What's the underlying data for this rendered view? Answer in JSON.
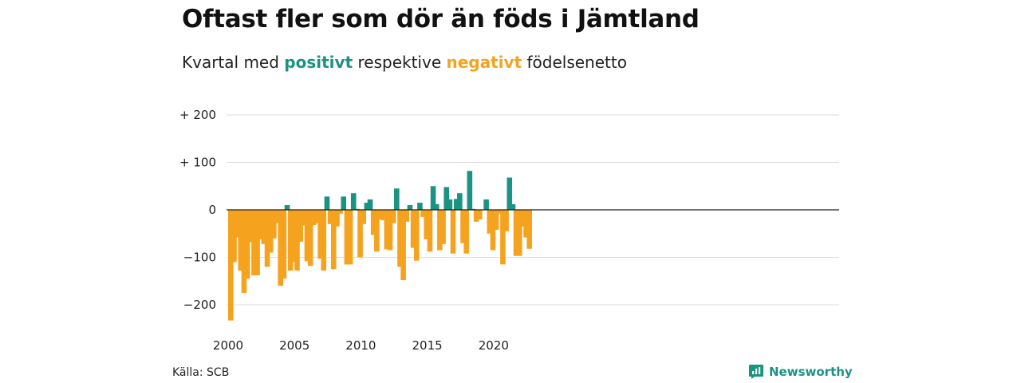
{
  "title": "Oftast fler som dör än föds i Jämtland",
  "subtitle": {
    "prefix": "Kvartal med",
    "positive_word": "positivt",
    "middle": "respektive",
    "negative_word": "negativt",
    "suffix": "födelsenetto"
  },
  "source": "Källa: SCB",
  "brand": {
    "name": "Newsworthy",
    "icon": "newsworthy-logo-icon"
  },
  "colors": {
    "positive": "#1b9383",
    "negative": "#f5a31e",
    "grid": "#dddddd",
    "zero": "#222222"
  },
  "chart_data": {
    "type": "bar",
    "x_unit": "quarter",
    "start": "2000 Q1",
    "end": "2022 Q4",
    "ylim": [
      -240,
      200
    ],
    "y_ticks": [
      {
        "value": 200,
        "label": "+ 200"
      },
      {
        "value": 100,
        "label": "+ 100"
      },
      {
        "value": 0,
        "label": "0"
      },
      {
        "value": -100,
        "label": "−100"
      },
      {
        "value": -200,
        "label": "−200"
      }
    ],
    "x_ticks": [
      {
        "year": 2000,
        "label": "2000"
      },
      {
        "year": 2005,
        "label": "2005"
      },
      {
        "year": 2010,
        "label": "2010"
      },
      {
        "year": 2015,
        "label": "2015"
      },
      {
        "year": 2020,
        "label": "2020"
      }
    ],
    "values": [
      -233,
      -110,
      -58,
      -128,
      -175,
      -145,
      -68,
      -138,
      -138,
      -62,
      -72,
      -120,
      -90,
      -60,
      -28,
      -160,
      -145,
      10,
      -128,
      -110,
      -128,
      -67,
      -33,
      -108,
      -118,
      -32,
      -28,
      -103,
      -128,
      28,
      -30,
      -125,
      -35,
      -8,
      28,
      -115,
      -115,
      35,
      2,
      -100,
      -30,
      15,
      22,
      -53,
      -88,
      -20,
      -22,
      -83,
      -85,
      -28,
      45,
      -120,
      -148,
      -25,
      10,
      -80,
      -107,
      15,
      -15,
      -62,
      -88,
      50,
      12,
      -85,
      -72,
      48,
      22,
      -92,
      23,
      35,
      -70,
      -92,
      82,
      2,
      -25,
      -20,
      0,
      22,
      -50,
      -85,
      -42,
      -8,
      -115,
      -45,
      68,
      12,
      -97,
      -97,
      -35,
      -58,
      -82,
      0
    ]
  }
}
